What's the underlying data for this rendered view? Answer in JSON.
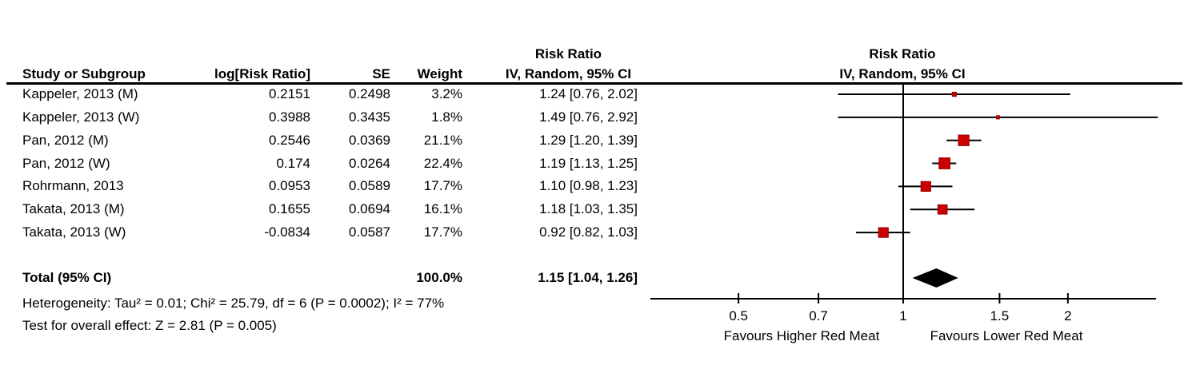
{
  "table": {
    "headers": {
      "study": "Study or Subgroup",
      "log_rr": "log[Risk Ratio]",
      "se": "SE",
      "weight": "Weight",
      "ci_line1": "Risk Ratio",
      "ci_line2": "IV, Random, 95% CI",
      "plot_line1": "Risk Ratio",
      "plot_line2": "IV, Random, 95% CI"
    },
    "rows": [
      {
        "study": "Kappeler, 2013 (M)",
        "log_rr": "0.2151",
        "se": "0.2498",
        "weight": "3.2%",
        "ci": "1.24 [0.76, 2.02]"
      },
      {
        "study": "Kappeler, 2013 (W)",
        "log_rr": "0.3988",
        "se": "0.3435",
        "weight": "1.8%",
        "ci": "1.49 [0.76, 2.92]"
      },
      {
        "study": "Pan, 2012 (M)",
        "log_rr": "0.2546",
        "se": "0.0369",
        "weight": "21.1%",
        "ci": "1.29 [1.20, 1.39]"
      },
      {
        "study": "Pan, 2012 (W)",
        "log_rr": "0.174",
        "se": "0.0264",
        "weight": "22.4%",
        "ci": "1.19 [1.13, 1.25]"
      },
      {
        "study": "Rohrmann, 2013",
        "log_rr": "0.0953",
        "se": "0.0589",
        "weight": "17.7%",
        "ci": "1.10 [0.98, 1.23]"
      },
      {
        "study": "Takata, 2013 (M)",
        "log_rr": "0.1655",
        "se": "0.0694",
        "weight": "16.1%",
        "ci": "1.18 [1.03, 1.35]"
      },
      {
        "study": "Takata, 2013 (W)",
        "log_rr": "-0.0834",
        "se": "0.0587",
        "weight": "17.7%",
        "ci": "0.92 [0.82, 1.03]"
      }
    ],
    "total": {
      "label": "Total (95% CI)",
      "weight": "100.0%",
      "ci": "1.15 [1.04, 1.26]"
    },
    "heterogeneity": "Heterogeneity: Tau² = 0.01; Chi² = 25.79, df = 6 (P = 0.0002); I² = 77%",
    "overall_effect": "Test for overall effect: Z = 2.81 (P = 0.005)"
  },
  "chart_data": {
    "type": "scatter",
    "subtype": "forest-plot",
    "title": "Risk Ratio",
    "xlabel": "IV, Random, 95% CI",
    "x_scale": "log",
    "null_line": 1,
    "axis_ticks": [
      0.5,
      0.7,
      1,
      1.5,
      2
    ],
    "axis_tick_labels": [
      "0.5",
      "0.7",
      "1",
      "1.5",
      "2"
    ],
    "studies": [
      {
        "name": "Kappeler, 2013 (M)",
        "rr": 1.24,
        "ci_low": 0.76,
        "ci_high": 2.02,
        "weight_pct": 3.2
      },
      {
        "name": "Kappeler, 2013 (W)",
        "rr": 1.49,
        "ci_low": 0.76,
        "ci_high": 2.92,
        "weight_pct": 1.8
      },
      {
        "name": "Pan, 2012 (M)",
        "rr": 1.29,
        "ci_low": 1.2,
        "ci_high": 1.39,
        "weight_pct": 21.1
      },
      {
        "name": "Pan, 2012 (W)",
        "rr": 1.19,
        "ci_low": 1.13,
        "ci_high": 1.25,
        "weight_pct": 22.4
      },
      {
        "name": "Rohrmann, 2013",
        "rr": 1.1,
        "ci_low": 0.98,
        "ci_high": 1.23,
        "weight_pct": 17.7
      },
      {
        "name": "Takata, 2013 (M)",
        "rr": 1.18,
        "ci_low": 1.03,
        "ci_high": 1.35,
        "weight_pct": 16.1
      },
      {
        "name": "Takata, 2013 (W)",
        "rr": 0.92,
        "ci_low": 0.82,
        "ci_high": 1.03,
        "weight_pct": 17.7
      }
    ],
    "total": {
      "rr": 1.15,
      "ci_low": 1.04,
      "ci_high": 1.26
    },
    "favours_left": "Favours Higher Red Meat",
    "favours_right": "Favours Lower Red Meat",
    "marker_color": "#CC0000",
    "marker_border": "#8F0000",
    "line_color": "#000000",
    "diamond_color": "#000000"
  }
}
